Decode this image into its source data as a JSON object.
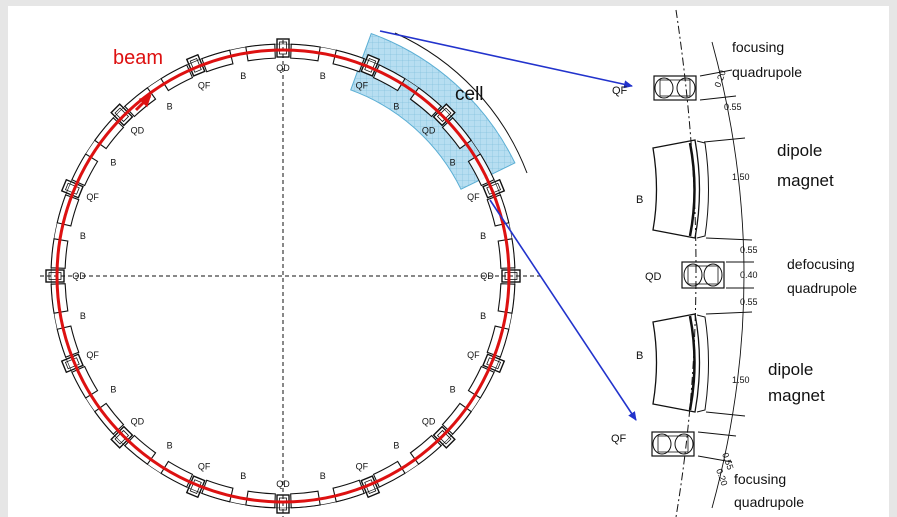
{
  "ring": {
    "beam_label": "beam",
    "cell_label": "cell",
    "lbl_qd_top": "QD",
    "lbl_qd_bottom": "QD",
    "lbl_qd_left": "QD",
    "lbl_qd_right": "QD",
    "lbl_qf": "QF",
    "lbl_b": "B"
  },
  "detail": {
    "qf_top": "QF",
    "qf_bottom": "QF",
    "qd": "QD",
    "b_top": "B",
    "b_bottom": "B",
    "focusing_top_1": "focusing",
    "focusing_top_2": "quadrupole",
    "dipole_top_1": "dipole",
    "dipole_top_2": "magnet",
    "defocusing_1": "defocusing",
    "defocusing_2": "quadrupole",
    "dipole_bottom_1": "dipole",
    "dipole_bottom_2": "magnet",
    "focusing_bottom_1": "focusing",
    "focusing_bottom_2": "quadrupole",
    "dim_020_top": "0.20",
    "dim_055_a": "0.55",
    "dim_150_top": "1.50",
    "dim_055_b": "0.55",
    "dim_040": "0.40",
    "dim_055_c": "0.55",
    "dim_150_bottom": "1.50",
    "dim_055_d": "0.55",
    "dim_020_bottom": "0.20"
  },
  "colors": {
    "beam": "#dd1111",
    "arrow": "#2233cc",
    "cell_fill": "#9fd3ec",
    "line": "#111111"
  }
}
